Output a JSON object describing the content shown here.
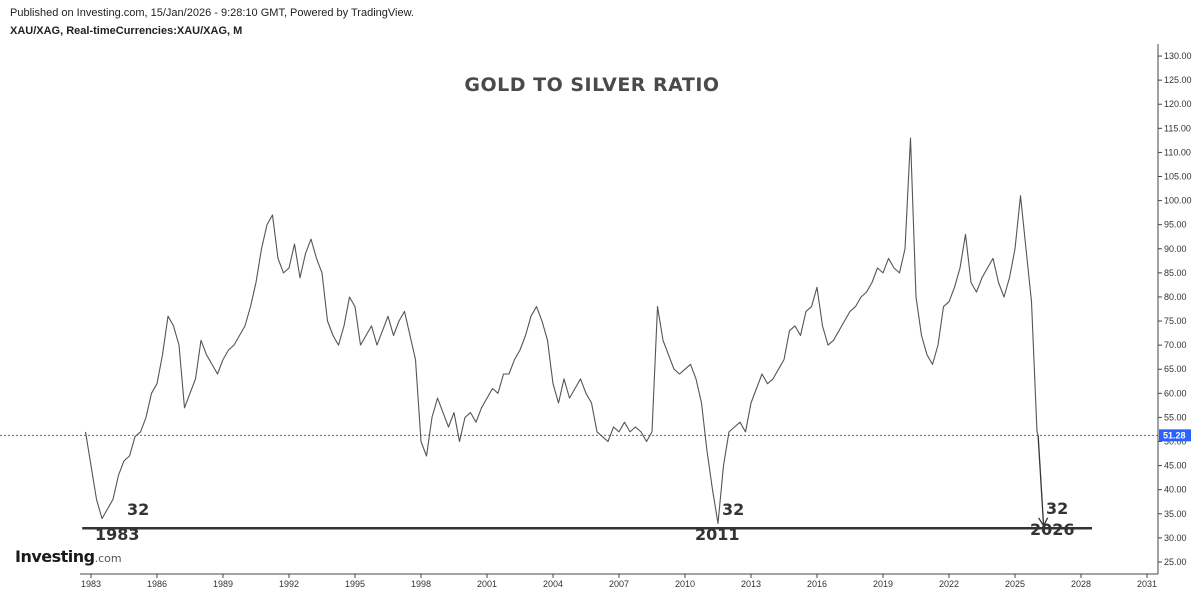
{
  "header": {
    "published": "Published on Investing.com, 15/Jan/2026 - 9:28:10 GMT, Powered by TradingView.",
    "symbol": "XAU/XAG, Real-timeCurrencies:XAU/XAG, M"
  },
  "logo": {
    "main": "Investing",
    "suffix": ".com"
  },
  "colors": {
    "line": "#555555",
    "priceLine": "#4169e1",
    "priceBadge": "#2962ff",
    "support": "#333333"
  },
  "chart_data": {
    "type": "line",
    "title": "GOLD TO SILVER RATIO",
    "xlabel": "",
    "ylabel": "",
    "xlim": [
      1982.5,
      2031.5
    ],
    "ylim": [
      22.5,
      132.5
    ],
    "x_ticks": [
      "1983",
      "1986",
      "1989",
      "1992",
      "1995",
      "1998",
      "2001",
      "2004",
      "2007",
      "2010",
      "2013",
      "2016",
      "2019",
      "2022",
      "2025",
      "2028",
      "2031"
    ],
    "y_ticks": [
      "25.00",
      "30.00",
      "35.00",
      "40.00",
      "45.00",
      "50.00",
      "55.00",
      "60.00",
      "65.00",
      "70.00",
      "75.00",
      "80.00",
      "85.00",
      "90.00",
      "95.00",
      "100.00",
      "105.00",
      "110.00",
      "115.00",
      "120.00",
      "125.00",
      "130.00"
    ],
    "current_price": {
      "value": 51.28,
      "label": "51.28"
    },
    "support": {
      "value": 32,
      "x_start": 1982.6,
      "x_end": 2028.5
    },
    "annotations": [
      {
        "id": "1983",
        "value_label": "32",
        "year_label": "1983",
        "x": 1983.4
      },
      {
        "id": "2011",
        "value_label": "32",
        "year_label": "2011",
        "x": 2011.4
      },
      {
        "id": "2026",
        "value_label": "32",
        "year_label": "2026",
        "x": 2026.1
      }
    ],
    "projection": {
      "from": [
        2026.05,
        51.28
      ],
      "to": [
        2026.3,
        32.5
      ]
    },
    "series": [
      {
        "name": "XAU/XAG",
        "points": [
          [
            1982.75,
            52
          ],
          [
            1983.0,
            45
          ],
          [
            1983.25,
            38
          ],
          [
            1983.5,
            34
          ],
          [
            1983.75,
            36
          ],
          [
            1984.0,
            38
          ],
          [
            1984.25,
            43
          ],
          [
            1984.5,
            46
          ],
          [
            1984.75,
            47
          ],
          [
            1985.0,
            51
          ],
          [
            1985.25,
            52
          ],
          [
            1985.5,
            55
          ],
          [
            1985.75,
            60
          ],
          [
            1986.0,
            62
          ],
          [
            1986.25,
            68
          ],
          [
            1986.5,
            76
          ],
          [
            1986.75,
            74
          ],
          [
            1987.0,
            70
          ],
          [
            1987.25,
            57
          ],
          [
            1987.5,
            60
          ],
          [
            1987.75,
            63
          ],
          [
            1988.0,
            71
          ],
          [
            1988.25,
            68
          ],
          [
            1988.5,
            66
          ],
          [
            1988.75,
            64
          ],
          [
            1989.0,
            67
          ],
          [
            1989.25,
            69
          ],
          [
            1989.5,
            70
          ],
          [
            1989.75,
            72
          ],
          [
            1990.0,
            74
          ],
          [
            1990.25,
            78
          ],
          [
            1990.5,
            83
          ],
          [
            1990.75,
            90
          ],
          [
            1991.0,
            95
          ],
          [
            1991.25,
            97
          ],
          [
            1991.5,
            88
          ],
          [
            1991.75,
            85
          ],
          [
            1992.0,
            86
          ],
          [
            1992.25,
            91
          ],
          [
            1992.5,
            84
          ],
          [
            1992.75,
            89
          ],
          [
            1993.0,
            92
          ],
          [
            1993.25,
            88
          ],
          [
            1993.5,
            85
          ],
          [
            1993.75,
            75
          ],
          [
            1994.0,
            72
          ],
          [
            1994.25,
            70
          ],
          [
            1994.5,
            74
          ],
          [
            1994.75,
            80
          ],
          [
            1995.0,
            78
          ],
          [
            1995.25,
            70
          ],
          [
            1995.5,
            72
          ],
          [
            1995.75,
            74
          ],
          [
            1996.0,
            70
          ],
          [
            1996.25,
            73
          ],
          [
            1996.5,
            76
          ],
          [
            1996.75,
            72
          ],
          [
            1997.0,
            75
          ],
          [
            1997.25,
            77
          ],
          [
            1997.5,
            72
          ],
          [
            1997.75,
            67
          ],
          [
            1998.0,
            50
          ],
          [
            1998.25,
            47
          ],
          [
            1998.5,
            55
          ],
          [
            1998.75,
            59
          ],
          [
            1999.0,
            56
          ],
          [
            1999.25,
            53
          ],
          [
            1999.5,
            56
          ],
          [
            1999.75,
            50
          ],
          [
            2000.0,
            55
          ],
          [
            2000.25,
            56
          ],
          [
            2000.5,
            54
          ],
          [
            2000.75,
            57
          ],
          [
            2001.0,
            59
          ],
          [
            2001.25,
            61
          ],
          [
            2001.5,
            60
          ],
          [
            2001.75,
            64
          ],
          [
            2002.0,
            64
          ],
          [
            2002.25,
            67
          ],
          [
            2002.5,
            69
          ],
          [
            2002.75,
            72
          ],
          [
            2003.0,
            76
          ],
          [
            2003.25,
            78
          ],
          [
            2003.5,
            75
          ],
          [
            2003.75,
            71
          ],
          [
            2004.0,
            62
          ],
          [
            2004.25,
            58
          ],
          [
            2004.5,
            63
          ],
          [
            2004.75,
            59
          ],
          [
            2005.0,
            61
          ],
          [
            2005.25,
            63
          ],
          [
            2005.5,
            60
          ],
          [
            2005.75,
            58
          ],
          [
            2006.0,
            52
          ],
          [
            2006.25,
            51
          ],
          [
            2006.5,
            50
          ],
          [
            2006.75,
            53
          ],
          [
            2007.0,
            52
          ],
          [
            2007.25,
            54
          ],
          [
            2007.5,
            52
          ],
          [
            2007.75,
            53
          ],
          [
            2008.0,
            52
          ],
          [
            2008.25,
            50
          ],
          [
            2008.5,
            52
          ],
          [
            2008.75,
            78
          ],
          [
            2009.0,
            71
          ],
          [
            2009.25,
            68
          ],
          [
            2009.5,
            65
          ],
          [
            2009.75,
            64
          ],
          [
            2010.0,
            65
          ],
          [
            2010.25,
            66
          ],
          [
            2010.5,
            63
          ],
          [
            2010.75,
            58
          ],
          [
            2011.0,
            48
          ],
          [
            2011.25,
            40
          ],
          [
            2011.5,
            33
          ],
          [
            2011.75,
            45
          ],
          [
            2012.0,
            52
          ],
          [
            2012.25,
            53
          ],
          [
            2012.5,
            54
          ],
          [
            2012.75,
            52
          ],
          [
            2013.0,
            58
          ],
          [
            2013.25,
            61
          ],
          [
            2013.5,
            64
          ],
          [
            2013.75,
            62
          ],
          [
            2014.0,
            63
          ],
          [
            2014.25,
            65
          ],
          [
            2014.5,
            67
          ],
          [
            2014.75,
            73
          ],
          [
            2015.0,
            74
          ],
          [
            2015.25,
            72
          ],
          [
            2015.5,
            77
          ],
          [
            2015.75,
            78
          ],
          [
            2016.0,
            82
          ],
          [
            2016.25,
            74
          ],
          [
            2016.5,
            70
          ],
          [
            2016.75,
            71
          ],
          [
            2017.0,
            73
          ],
          [
            2017.25,
            75
          ],
          [
            2017.5,
            77
          ],
          [
            2017.75,
            78
          ],
          [
            2018.0,
            80
          ],
          [
            2018.25,
            81
          ],
          [
            2018.5,
            83
          ],
          [
            2018.75,
            86
          ],
          [
            2019.0,
            85
          ],
          [
            2019.25,
            88
          ],
          [
            2019.5,
            86
          ],
          [
            2019.75,
            85
          ],
          [
            2020.0,
            90
          ],
          [
            2020.25,
            113
          ],
          [
            2020.5,
            80
          ],
          [
            2020.75,
            72
          ],
          [
            2021.0,
            68
          ],
          [
            2021.25,
            66
          ],
          [
            2021.5,
            70
          ],
          [
            2021.75,
            78
          ],
          [
            2022.0,
            79
          ],
          [
            2022.25,
            82
          ],
          [
            2022.5,
            86
          ],
          [
            2022.75,
            93
          ],
          [
            2023.0,
            83
          ],
          [
            2023.25,
            81
          ],
          [
            2023.5,
            84
          ],
          [
            2023.75,
            86
          ],
          [
            2024.0,
            88
          ],
          [
            2024.25,
            83
          ],
          [
            2024.5,
            80
          ],
          [
            2024.75,
            84
          ],
          [
            2025.0,
            90
          ],
          [
            2025.25,
            101
          ],
          [
            2025.5,
            90
          ],
          [
            2025.75,
            79
          ],
          [
            2026.0,
            52
          ],
          [
            2026.05,
            51.28
          ]
        ]
      }
    ]
  }
}
